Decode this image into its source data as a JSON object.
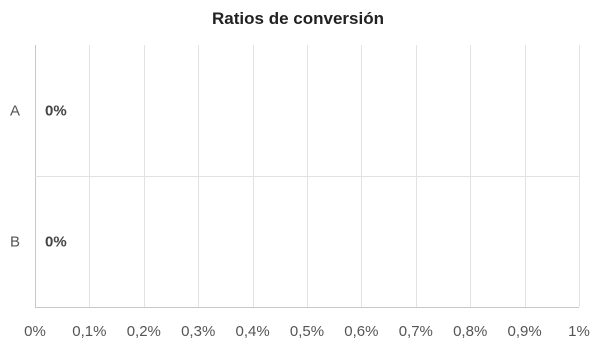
{
  "chart_data": {
    "type": "bar",
    "orientation": "horizontal",
    "title": "Ratios de conversión",
    "categories": [
      "A",
      "B"
    ],
    "values": [
      0,
      0
    ],
    "data_labels": [
      "0%",
      "0%"
    ],
    "xlim": [
      0,
      1
    ],
    "x_ticks": [
      0,
      0.1,
      0.2,
      0.3,
      0.4,
      0.5,
      0.6,
      0.7,
      0.8,
      0.9,
      1
    ],
    "x_tick_labels": [
      "0%",
      "0,1%",
      "0,2%",
      "0,3%",
      "0,4%",
      "0,5%",
      "0,6%",
      "0,7%",
      "0,8%",
      "0,9%",
      "1%"
    ],
    "grid": true,
    "legend": "none",
    "colors": {
      "bar": "#4a90d9",
      "grid": "#e2e2e2",
      "text": "#555555"
    }
  }
}
